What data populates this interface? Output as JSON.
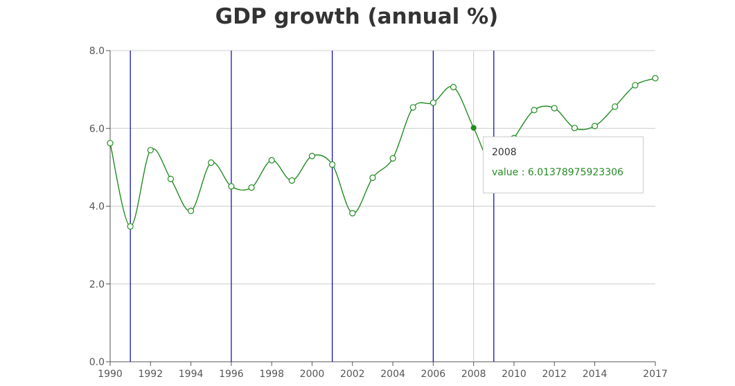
{
  "title": "GDP growth (annual %)",
  "colors": {
    "series": "#228b22",
    "marker_lines": "#0000aa",
    "hover_line": "#cccccc",
    "grid": "#cccccc"
  },
  "tooltip": {
    "year": "2008",
    "value_text": "value : 6.01378975923306"
  },
  "chart_data": {
    "type": "line",
    "title": "GDP growth (annual %)",
    "xlabel": "",
    "ylabel": "",
    "xlim": [
      1990,
      2017
    ],
    "ylim": [
      0,
      8
    ],
    "y_ticks": [
      "0.0",
      "2.0",
      "4.0",
      "6.0",
      "8.0"
    ],
    "x_ticks": [
      "1990",
      "1992",
      "1994",
      "1996",
      "1998",
      "2000",
      "2002",
      "2004",
      "2006",
      "2008",
      "2010",
      "2012",
      "2014",
      "2017"
    ],
    "grid": true,
    "vertical_markers": [
      1991,
      1996,
      2001,
      2006,
      2009
    ],
    "hover_x": 2008,
    "series": [
      {
        "x": [
          1990,
          1991,
          1992,
          1993,
          1994,
          1995,
          1996,
          1997,
          1998,
          1999,
          2000,
          2001,
          2002,
          2003,
          2004,
          2005,
          2006,
          2007,
          2008,
          2009,
          2010,
          2011,
          2012,
          2013,
          2014,
          2015,
          2016,
          2017
        ],
        "values": [
          5.62,
          3.48,
          5.44,
          4.7,
          3.88,
          5.12,
          4.51,
          4.48,
          5.18,
          4.66,
          5.29,
          5.07,
          3.82,
          4.73,
          5.23,
          6.54,
          6.66,
          7.06,
          6.01378975923306,
          5.0,
          5.75,
          6.47,
          6.52,
          6.01,
          6.06,
          6.56,
          7.11,
          7.29
        ]
      }
    ]
  }
}
